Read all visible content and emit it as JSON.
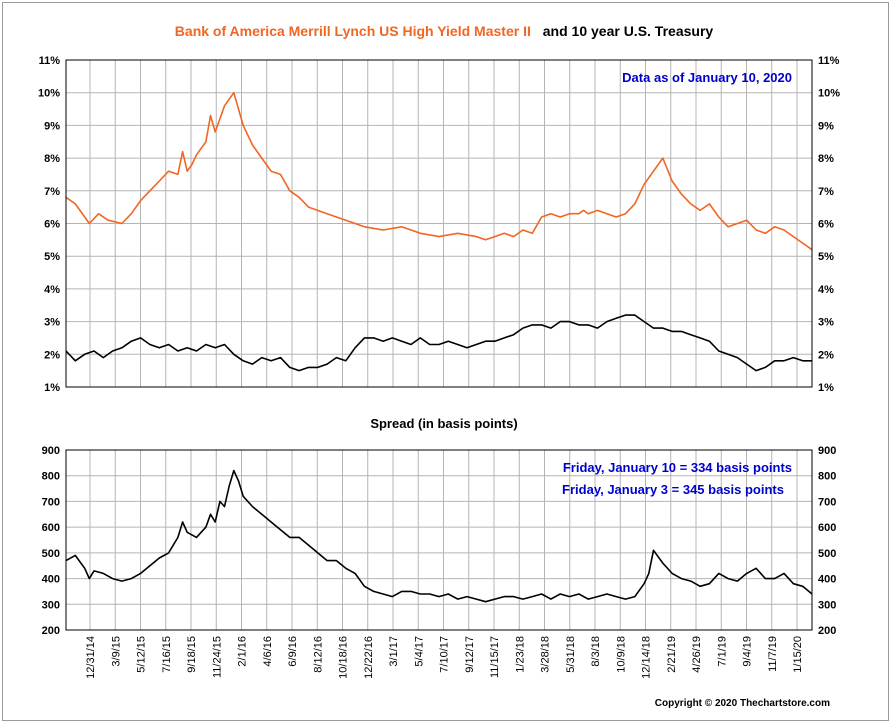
{
  "title": {
    "part1": "Bank of America Merrill Lynch US High Yield Master II",
    "part2": "and 10 year U.S. Treasury",
    "part1_color": "#f26522",
    "part2_color": "#000000"
  },
  "chart_data": [
    {
      "type": "line",
      "annotation": "Data as of January 10, 2020",
      "annotation_color": "#0000cc",
      "ylim": [
        1,
        11
      ],
      "yticks": [
        "1%",
        "2%",
        "3%",
        "4%",
        "5%",
        "6%",
        "7%",
        "8%",
        "9%",
        "10%",
        "11%"
      ],
      "grid": true,
      "series": [
        {
          "color": "#f26522",
          "x": [
            0,
            2,
            4,
            5,
            7,
            9,
            12,
            14,
            16,
            18,
            20,
            22,
            24,
            25,
            26,
            27,
            28,
            30,
            31,
            32,
            33,
            34,
            36,
            38,
            40,
            42,
            44,
            46,
            48,
            50,
            52,
            56,
            60,
            64,
            68,
            72,
            76,
            80,
            84,
            88,
            90,
            92,
            94,
            96,
            98,
            100,
            102,
            104,
            106,
            108,
            110,
            111,
            112,
            114,
            116,
            118,
            120,
            122,
            124,
            126,
            128,
            130,
            132,
            134,
            136,
            138,
            140,
            142,
            144,
            146,
            148,
            150,
            152,
            154,
            156,
            158,
            160
          ],
          "values": [
            6.8,
            6.6,
            6.2,
            6.0,
            6.3,
            6.1,
            6.0,
            6.3,
            6.7,
            7.0,
            7.3,
            7.6,
            7.5,
            8.2,
            7.6,
            7.8,
            8.1,
            8.5,
            9.3,
            8.8,
            9.2,
            9.6,
            10.0,
            9.0,
            8.4,
            8.0,
            7.6,
            7.5,
            7.0,
            6.8,
            6.5,
            6.3,
            6.1,
            5.9,
            5.8,
            5.9,
            5.7,
            5.6,
            5.7,
            5.6,
            5.5,
            5.6,
            5.7,
            5.6,
            5.8,
            5.7,
            6.2,
            6.3,
            6.2,
            6.3,
            6.3,
            6.4,
            6.3,
            6.4,
            6.3,
            6.2,
            6.3,
            6.6,
            7.2,
            7.6,
            8.0,
            7.3,
            6.9,
            6.6,
            6.4,
            6.6,
            6.2,
            5.9,
            6.0,
            6.1,
            5.8,
            5.7,
            5.9,
            5.8,
            5.6,
            5.4,
            5.2
          ]
        },
        {
          "color": "#000000",
          "x": [
            0,
            2,
            4,
            6,
            8,
            10,
            12,
            14,
            16,
            18,
            20,
            22,
            24,
            26,
            28,
            30,
            32,
            34,
            36,
            38,
            40,
            42,
            44,
            46,
            48,
            50,
            52,
            54,
            56,
            58,
            60,
            62,
            64,
            66,
            68,
            70,
            72,
            74,
            76,
            78,
            80,
            82,
            84,
            86,
            88,
            90,
            92,
            94,
            96,
            98,
            100,
            102,
            104,
            106,
            108,
            110,
            112,
            114,
            116,
            118,
            120,
            122,
            124,
            126,
            128,
            130,
            132,
            134,
            136,
            138,
            140,
            142,
            144,
            146,
            148,
            150,
            152,
            154,
            156,
            158,
            160
          ],
          "values": [
            2.1,
            1.8,
            2.0,
            2.1,
            1.9,
            2.1,
            2.2,
            2.4,
            2.5,
            2.3,
            2.2,
            2.3,
            2.1,
            2.2,
            2.1,
            2.3,
            2.2,
            2.3,
            2.0,
            1.8,
            1.7,
            1.9,
            1.8,
            1.9,
            1.6,
            1.5,
            1.6,
            1.6,
            1.7,
            1.9,
            1.8,
            2.2,
            2.5,
            2.5,
            2.4,
            2.5,
            2.4,
            2.3,
            2.5,
            2.3,
            2.3,
            2.4,
            2.3,
            2.2,
            2.3,
            2.4,
            2.4,
            2.5,
            2.6,
            2.8,
            2.9,
            2.9,
            2.8,
            3.0,
            3.0,
            2.9,
            2.9,
            2.8,
            3.0,
            3.1,
            3.2,
            3.2,
            3.0,
            2.8,
            2.8,
            2.7,
            2.7,
            2.6,
            2.5,
            2.4,
            2.1,
            2.0,
            1.9,
            1.7,
            1.5,
            1.6,
            1.8,
            1.8,
            1.9,
            1.8,
            1.8
          ]
        }
      ]
    },
    {
      "type": "line",
      "title": "Spread (in basis points)",
      "annotations": [
        "Friday, January 10 = 334 basis points",
        "Friday, January 3 = 345 basis points"
      ],
      "annotation_color": "#0000cc",
      "ylim": [
        200,
        900
      ],
      "yticks": [
        "200",
        "300",
        "400",
        "500",
        "600",
        "700",
        "800",
        "900"
      ],
      "grid": true,
      "series": [
        {
          "color": "#000000",
          "x": [
            0,
            2,
            4,
            5,
            6,
            8,
            10,
            12,
            14,
            16,
            18,
            20,
            22,
            24,
            25,
            26,
            28,
            30,
            31,
            32,
            33,
            34,
            35,
            36,
            37,
            38,
            40,
            42,
            44,
            46,
            48,
            50,
            52,
            54,
            56,
            58,
            60,
            62,
            64,
            66,
            68,
            70,
            72,
            74,
            76,
            78,
            80,
            82,
            84,
            86,
            88,
            90,
            92,
            94,
            96,
            98,
            100,
            102,
            104,
            106,
            108,
            110,
            112,
            114,
            116,
            118,
            120,
            122,
            124,
            125,
            126,
            128,
            130,
            132,
            134,
            136,
            138,
            140,
            142,
            144,
            146,
            148,
            150,
            152,
            154,
            156,
            158,
            160
          ],
          "values": [
            470,
            490,
            440,
            400,
            430,
            420,
            400,
            390,
            400,
            420,
            450,
            480,
            500,
            560,
            620,
            580,
            560,
            600,
            650,
            620,
            700,
            680,
            760,
            820,
            780,
            720,
            680,
            650,
            620,
            590,
            560,
            560,
            530,
            500,
            470,
            470,
            440,
            420,
            370,
            350,
            340,
            330,
            350,
            350,
            340,
            340,
            330,
            340,
            320,
            330,
            320,
            310,
            320,
            330,
            330,
            320,
            330,
            340,
            320,
            340,
            330,
            340,
            320,
            330,
            340,
            330,
            320,
            330,
            380,
            420,
            510,
            460,
            420,
            400,
            390,
            370,
            380,
            420,
            400,
            390,
            420,
            440,
            400,
            400,
            420,
            380,
            370,
            340
          ]
        }
      ]
    }
  ],
  "x_axis": {
    "dates": [
      "12/31/14",
      "3/9/15",
      "5/12/15",
      "7/16/15",
      "9/18/15",
      "11/24/15",
      "2/1/16",
      "4/6/16",
      "6/9/16",
      "8/12/16",
      "10/18/16",
      "12/22/16",
      "3/1/17",
      "5/4/17",
      "7/10/17",
      "9/12/17",
      "11/15/17",
      "1/23/18",
      "3/28/18",
      "5/31/18",
      "8/3/18",
      "10/9/18",
      "12/14/18",
      "2/21/19",
      "4/26/19",
      "7/1/19",
      "9/4/19",
      "11/7/19",
      "1/15/20"
    ]
  },
  "copyright": "Copyright © 2020 Thechartstore.com"
}
